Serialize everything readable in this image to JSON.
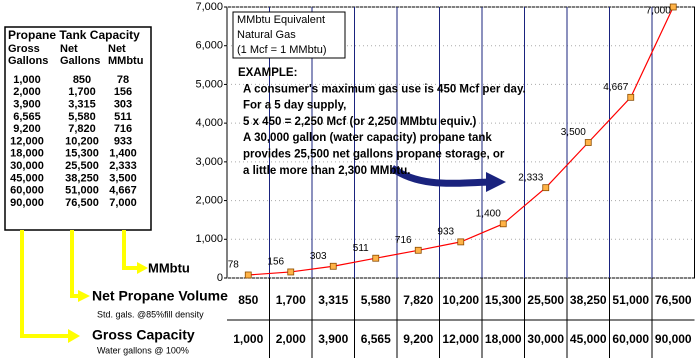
{
  "table": {
    "title": "Propane Tank Capacity",
    "headers": [
      [
        "Gross",
        "Gallons"
      ],
      [
        "Net",
        "Gallons"
      ],
      [
        "Net",
        "MMbtu"
      ]
    ],
    "rows": [
      [
        "1,000",
        "850",
        "78"
      ],
      [
        "2,000",
        "1,700",
        "156"
      ],
      [
        "3,900",
        "3,315",
        "303"
      ],
      [
        "6,565",
        "5,580",
        "511"
      ],
      [
        "9,200",
        "7,820",
        "716"
      ],
      [
        "12,000",
        "10,200",
        "933"
      ],
      [
        "18,000",
        "15,300",
        "1,400"
      ],
      [
        "30,000",
        "25,500",
        "2,333"
      ],
      [
        "45,000",
        "38,250",
        "3,500"
      ],
      [
        "60,000",
        "51,000",
        "4,667"
      ],
      [
        "90,000",
        "76,500",
        "7,000"
      ]
    ]
  },
  "chart_data": {
    "type": "line",
    "categories": [
      "850",
      "1,700",
      "3,315",
      "5,580",
      "7,820",
      "10,200",
      "15,300",
      "25,500",
      "38,250",
      "51,000",
      "76,500"
    ],
    "category_title": "Net Propane Volume",
    "category_note": "Std. gals. @85%fill density",
    "secondary_categories": [
      "1,000",
      "2,000",
      "3,900",
      "6,565",
      "9,200",
      "12,000",
      "18,000",
      "30,000",
      "45,000",
      "60,000",
      "90,000"
    ],
    "secondary_title": "Gross Capacity",
    "secondary_note": "Water gallons @ 100%",
    "series": [
      {
        "name": "MMbtu",
        "color": "#ff0000",
        "marker_color": "#ffb347",
        "values": [
          78,
          156,
          303,
          511,
          716,
          933,
          1400,
          2333,
          3500,
          4667,
          7000
        ],
        "value_labels": [
          "78",
          "156",
          "303",
          "511",
          "716",
          "933",
          "1,400",
          "2,333",
          "3,500",
          "4,667",
          "7,000"
        ]
      }
    ],
    "ylim": [
      0,
      7000
    ],
    "yticks": [
      0,
      {
        "value": 1000,
        "label": "1,000"
      },
      {
        "value": 2000,
        "label": "2,000"
      },
      {
        "value": 3000,
        "label": "3,000"
      },
      {
        "value": 4000,
        "label": "4,000"
      },
      {
        "value": 5000,
        "label": "5,000"
      },
      {
        "value": 6000,
        "label": "6,000"
      },
      {
        "value": 7000,
        "label": "7,000"
      }
    ],
    "grid": true,
    "box_lines": [
      "MMbtu Equivalent",
      "Natural Gas",
      "(1 Mcf = 1 MMbtu)"
    ],
    "annotations": [
      "EXAMPLE:",
      "A consumer's maximum gas use is 450 Mcf per day.",
      "For a 5 day supply,",
      "5 x 450 = 2,250 Mcf (or 2,250 MMbtu equiv.)",
      "A 30,000 gallon (water capacity) propane tank",
      "provides 25,500 net gallons propane storage, or",
      "a little more than 2,300 MMbtu."
    ]
  }
}
